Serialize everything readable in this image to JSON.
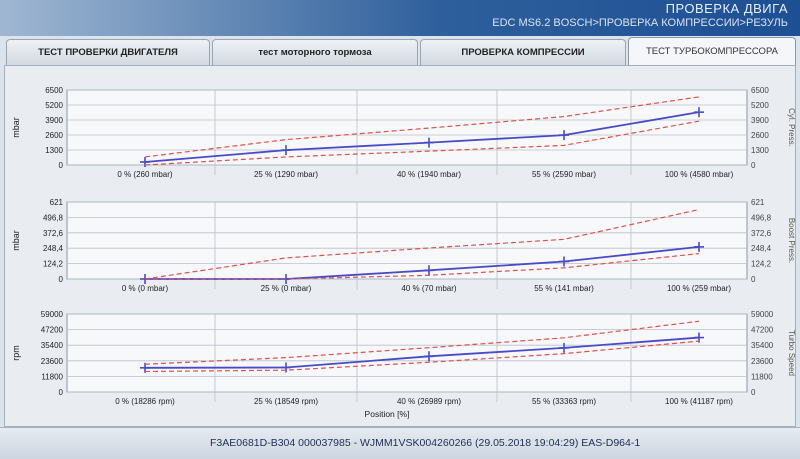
{
  "header": {
    "title": "ПРОВЕРКА ДВИГА",
    "path": "EDC MS6.2 BOSCH>ПРОВЕРКА КОМПРЕССИИ>РЕЗУЛЬ"
  },
  "tabs": [
    {
      "label": "ТЕСТ ПРОВЕРКИ ДВИГАТЕЛЯ"
    },
    {
      "label": "тест моторного тормоза"
    },
    {
      "label": "ПРОВЕРКА КОМПРЕССИИ"
    },
    {
      "label": "ТЕСТ ТУРБОКОМПРЕССОРА"
    }
  ],
  "active_tab": "ТЕСТ ТУРБОКОМПРЕССОРА",
  "colors": {
    "measured_line": "#4a4ac8",
    "limit_line": "#e05050",
    "grid": "#b9c0ca"
  },
  "chart_data": [
    {
      "type": "line",
      "categories": [
        "0 % (260 mbar)",
        "25 % (1290 mbar)",
        "40 % (1940 mbar)",
        "55 % (2590 mbar)",
        "100 % (4580 mbar)"
      ],
      "x": [
        0,
        25,
        40,
        55,
        100
      ],
      "ylabel": "mbar",
      "right_ylabel": "Cyl. Press.",
      "ylim": [
        0,
        6500
      ],
      "yticks": [
        "0",
        "1300",
        "2600",
        "3900",
        "5200",
        "6500"
      ],
      "right_ylim": [
        0,
        6500
      ],
      "right_yticks": [
        "0",
        "1300",
        "2600",
        "3900",
        "5200",
        "6500"
      ],
      "series": [
        {
          "values": [
            260,
            1290,
            1940,
            2590,
            4580
          ]
        },
        {
          "values": [
            700,
            2200,
            3200,
            4200,
            5900
          ]
        },
        {
          "values": [
            0,
            700,
            1200,
            1700,
            3800
          ]
        }
      ]
    },
    {
      "type": "line",
      "categories": [
        "0 % (0 mbar)",
        "25 % (0 mbar)",
        "40 % (70 mbar)",
        "55 % (141 mbar)",
        "100 % (259 mbar)"
      ],
      "x": [
        0,
        25,
        40,
        55,
        100
      ],
      "ylabel": "mbar",
      "right_ylabel": "Boost Press.",
      "ylim": [
        0,
        621
      ],
      "yticks": [
        "0",
        "124,2",
        "248,4",
        "372,6",
        "496,8",
        "621"
      ],
      "right_ylim": [
        0,
        621
      ],
      "right_yticks": [
        "0",
        "124,2",
        "248,4",
        "372,6",
        "496,8",
        "621"
      ],
      "series": [
        {
          "values": [
            0,
            0,
            70,
            141,
            259
          ]
        },
        {
          "values": [
            0,
            170,
            250,
            320,
            560
          ]
        },
        {
          "values": [
            0,
            0,
            30,
            90,
            205
          ]
        }
      ]
    },
    {
      "type": "line",
      "categories": [
        "0 % (18286 rpm)",
        "25 % (18549 rpm)",
        "40 % (26989 rpm)",
        "55 % (33363 rpm)",
        "100 % (41187 rpm)"
      ],
      "x": [
        0,
        25,
        40,
        55,
        100
      ],
      "xlabel": "Position [%]",
      "ylabel": "rpm",
      "right_ylabel": "Turbo Speed",
      "ylim": [
        0,
        59000
      ],
      "yticks": [
        "0",
        "11800",
        "23600",
        "35400",
        "47200",
        "59000"
      ],
      "right_ylim": [
        0,
        59000
      ],
      "right_yticks": [
        "0",
        "11800",
        "23600",
        "35400",
        "47200",
        "59000"
      ],
      "series": [
        {
          "values": [
            18286,
            18549,
            26989,
            33363,
            41187
          ]
        },
        {
          "values": [
            21000,
            26000,
            33500,
            41000,
            53500
          ]
        },
        {
          "values": [
            15500,
            16500,
            22500,
            29000,
            38500
          ]
        }
      ]
    }
  ],
  "footer": {
    "info": "F3AE0681D-B304 000037985 - WJMM1VSK004260266 (29.05.2018 19:04:29) EAS-D964-1"
  }
}
